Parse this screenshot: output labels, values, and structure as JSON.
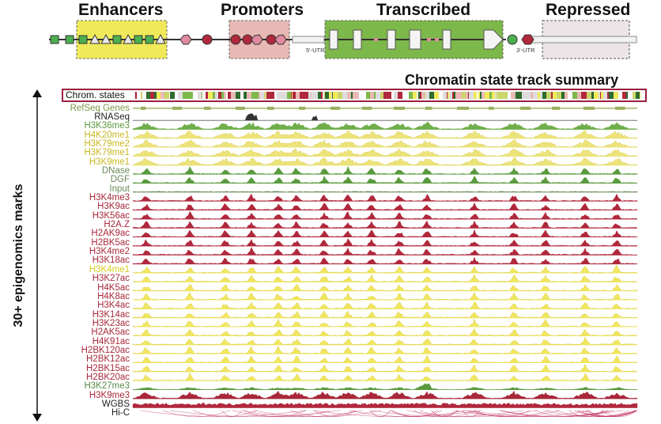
{
  "headers": {
    "enhancers": "Enhancers",
    "promoters": "Promoters",
    "transcribed": "Transcribed",
    "repressed": "Repressed"
  },
  "schematic": {
    "utr5": "5'-UTR",
    "utr3": "3'-UTR"
  },
  "summary_title": "Chromatin state track summary",
  "chrom_states_label": "Chrom. states",
  "side_label": "30+ epigenomics marks",
  "colors": {
    "enhancer_box": "#f0ea5a",
    "promoter_box": "#e8b9b4",
    "transcribed_box": "#7db84a",
    "repressed_box": "#ece4e6",
    "red_mark": "#b0283c",
    "yellow_mark": "#e8e04a",
    "green_mark": "#5a9a3e",
    "dark_mark": "#3a3a3a"
  },
  "tracks": [
    {
      "label": "RefSeq Genes",
      "color": "#7a9a4a",
      "kind": "genes"
    },
    {
      "label": "RNASeq",
      "color": "#222222",
      "kind": "rnaseq"
    },
    {
      "label": "H3K36me3",
      "color": "#5a9a3e",
      "kind": "green"
    },
    {
      "label": "H4K20me1",
      "color": "#c8b820",
      "kind": "yellowA"
    },
    {
      "label": "H3K79me2",
      "color": "#c8b820",
      "kind": "yellowA"
    },
    {
      "label": "H3K79me1",
      "color": "#c8b820",
      "kind": "yellowA"
    },
    {
      "label": "H3K9me1",
      "color": "#c8b820",
      "kind": "yellowA"
    },
    {
      "label": "DNase",
      "color": "#6b8a5a",
      "kind": "dnase"
    },
    {
      "label": "DGF",
      "color": "#6b8a5a",
      "kind": "dnase"
    },
    {
      "label": "Input",
      "color": "#6b8a5a",
      "kind": "input"
    },
    {
      "label": "H3K4me3",
      "color": "#a8283a",
      "kind": "red"
    },
    {
      "label": "H3K9ac",
      "color": "#a8283a",
      "kind": "red"
    },
    {
      "label": "H3K56ac",
      "color": "#a8283a",
      "kind": "red"
    },
    {
      "label": "H2A.Z",
      "color": "#a8283a",
      "kind": "red"
    },
    {
      "label": "H2AK9ac",
      "color": "#a8283a",
      "kind": "red"
    },
    {
      "label": "H2BK5ac",
      "color": "#a8283a",
      "kind": "red"
    },
    {
      "label": "H3K4me2",
      "color": "#a8283a",
      "kind": "redY"
    },
    {
      "label": "H3K18ac",
      "color": "#a8283a",
      "kind": "redY"
    },
    {
      "label": "H3K4me1",
      "color": "#d8cc20",
      "kind": "yellowB"
    },
    {
      "label": "H3K27ac",
      "color": "#a8283a",
      "kind": "yellowB"
    },
    {
      "label": "H4K5ac",
      "color": "#a8283a",
      "kind": "yellowB"
    },
    {
      "label": "H4K8ac",
      "color": "#a8283a",
      "kind": "yellowB"
    },
    {
      "label": "H3K4ac",
      "color": "#a8283a",
      "kind": "yellowB"
    },
    {
      "label": "H3K14ac",
      "color": "#a8283a",
      "kind": "yellowB"
    },
    {
      "label": "H3K23ac",
      "color": "#a8283a",
      "kind": "yellowB"
    },
    {
      "label": "H2AK5ac",
      "color": "#a8283a",
      "kind": "yellowB"
    },
    {
      "label": "H4K91ac",
      "color": "#a8283a",
      "kind": "yellowB"
    },
    {
      "label": "H2BK120ac",
      "color": "#a8283a",
      "kind": "yellowB"
    },
    {
      "label": "H2BK12ac",
      "color": "#a8283a",
      "kind": "yellowB"
    },
    {
      "label": "H2BK15ac",
      "color": "#a8283a",
      "kind": "yellowB"
    },
    {
      "label": "H2BK20ac",
      "color": "#a8283a",
      "kind": "yellowB"
    },
    {
      "label": "H3K27me3",
      "color": "#5a8a4a",
      "kind": "k27"
    },
    {
      "label": "H3K9me3",
      "color": "#a8283a",
      "kind": "k9"
    },
    {
      "label": "WGBS",
      "color": "#222222",
      "kind": "wgbs"
    },
    {
      "label": "Hi-C",
      "color": "#222222",
      "kind": "hic"
    }
  ]
}
